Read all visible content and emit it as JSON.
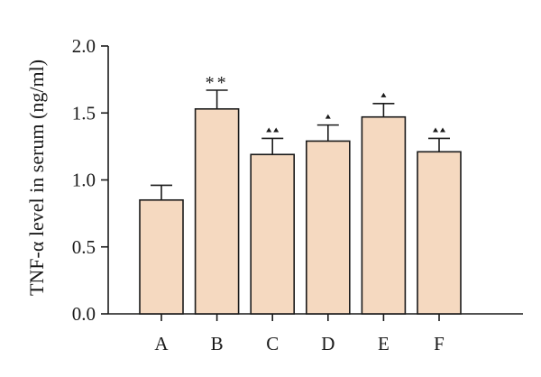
{
  "chart_data": {
    "type": "bar",
    "title": "",
    "xlabel": "",
    "ylabel": "TNF-α level in serum (ng/ml)",
    "ylim": [
      0,
      2.0
    ],
    "yticks": [
      0.0,
      0.5,
      1.0,
      1.5,
      2.0
    ],
    "ytick_labels": [
      "0.0",
      "0.5",
      "1.0",
      "1.5",
      "2.0"
    ],
    "categories": [
      "A",
      "B",
      "C",
      "D",
      "E",
      "F"
    ],
    "values": [
      0.85,
      1.53,
      1.19,
      1.29,
      1.47,
      1.21
    ],
    "errors": [
      0.11,
      0.14,
      0.12,
      0.12,
      0.1,
      0.1
    ],
    "significance": [
      {
        "category": "B",
        "mark": "**"
      },
      {
        "category": "C",
        "mark": "▲▲"
      },
      {
        "category": "D",
        "mark": "▲"
      },
      {
        "category": "E",
        "mark": "▲"
      },
      {
        "category": "F",
        "mark": "▲▲"
      }
    ],
    "bar_color": "#f5d9c0",
    "edge_color": "#1a1a1a",
    "grid": false,
    "legend": "none"
  }
}
